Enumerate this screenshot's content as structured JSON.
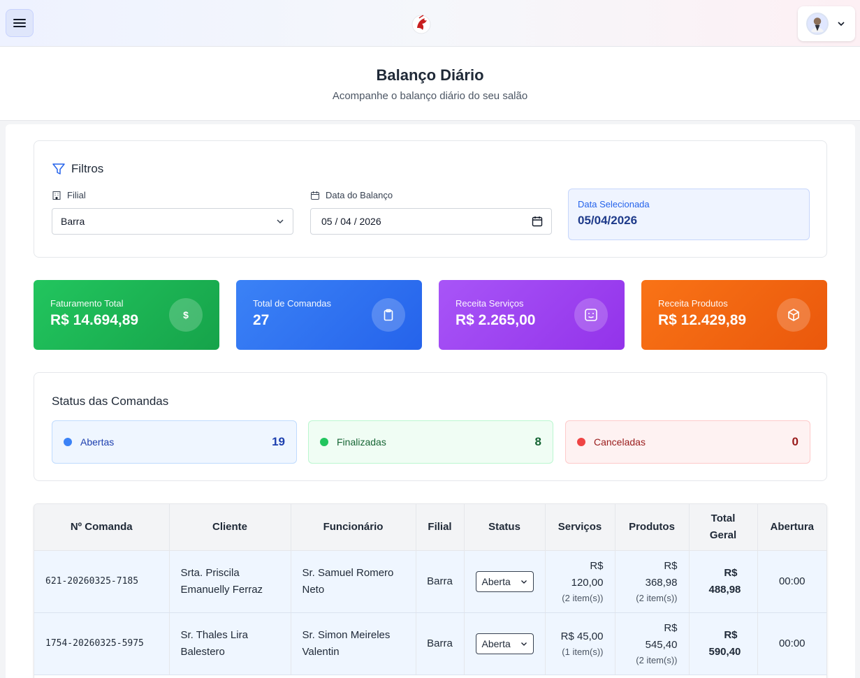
{
  "header": {
    "user_menu_icon": "chevron-down-icon"
  },
  "page": {
    "title": "Balanço Diário",
    "subtitle": "Acompanhe o balanço diário do seu salão"
  },
  "filters": {
    "title": "Filtros",
    "branch_label": "Filial",
    "branch_value": "Barra",
    "date_label": "Data do Balanço",
    "date_value": "05 / 04 / 2026",
    "selected_label": "Data Selecionada",
    "selected_value": "05/04/2026"
  },
  "stats": [
    {
      "label": "Faturamento Total",
      "value": "R$ 14.694,89",
      "icon": "dollar-icon",
      "icon_text": "$"
    },
    {
      "label": "Total de Comandas",
      "value": "27",
      "icon": "clipboard-icon"
    },
    {
      "label": "Receita Serviços",
      "value": "R$ 2.265,00",
      "icon": "face-icon"
    },
    {
      "label": "Receita Produtos",
      "value": "R$ 12.429,89",
      "icon": "box-icon"
    }
  ],
  "status": {
    "title": "Status das Comandas",
    "items": [
      {
        "label": "Abertas",
        "count": "19"
      },
      {
        "label": "Finalizadas",
        "count": "8"
      },
      {
        "label": "Canceladas",
        "count": "0"
      }
    ]
  },
  "table": {
    "headers": [
      "Nº Comanda",
      "Cliente",
      "Funcionário",
      "Filial",
      "Status",
      "Serviços",
      "Produtos",
      "Total Geral",
      "Abertura"
    ],
    "rows": [
      {
        "id": "621-20260325-7185",
        "client": "Srta. Priscila Emanuelly Ferraz",
        "employee": "Sr. Samuel Romero Neto",
        "branch": "Barra",
        "status": "Aberta",
        "services": "R$ 120,00",
        "services_items": "(2 item(s))",
        "products": "R$ 368,98",
        "products_items": "(2 item(s))",
        "total": "R$ 488,98",
        "opening": "00:00"
      },
      {
        "id": "1754-20260325-5975",
        "client": "Sr. Thales Lira Balestero",
        "employee": "Sr. Simon Meireles Valentin",
        "branch": "Barra",
        "status": "Aberta",
        "services": "R$ 45,00",
        "services_items": "(1 item(s))",
        "products": "R$ 545,40",
        "products_items": "(2 item(s))",
        "total": "R$ 590,40",
        "opening": "00:00"
      }
    ]
  },
  "colors": {
    "green": "#22c55e",
    "blue": "#3b82f6",
    "purple": "#a855f7",
    "orange": "#f97316"
  }
}
